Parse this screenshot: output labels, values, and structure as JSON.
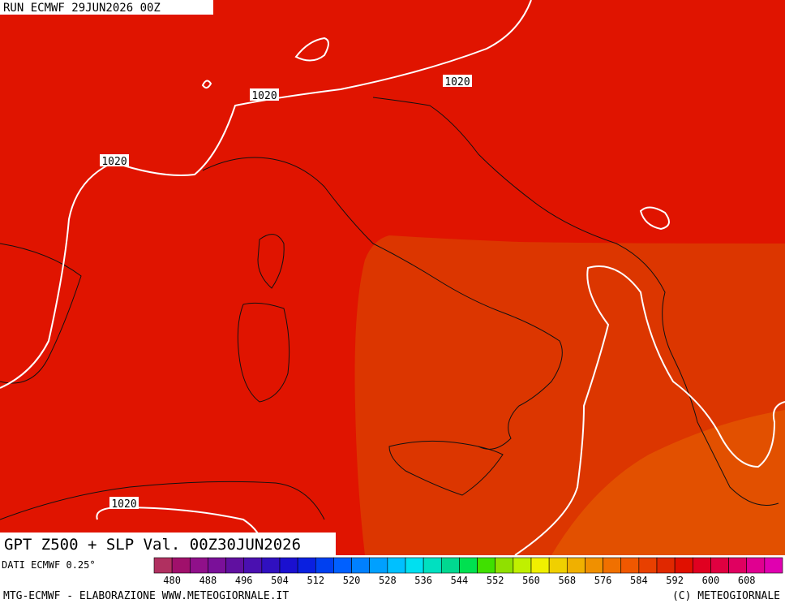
{
  "header": {
    "run": "RUN ECMWF 29JUN2026 00Z"
  },
  "map": {
    "title": "GPT Z500 + SLP Val. 00Z30JUN2026",
    "isoline_labels": [
      "1020",
      "1020",
      "1020",
      "1020"
    ]
  },
  "colorbar": {
    "source": "DATI ECMWF 0.25°",
    "labels": [
      "480",
      "488",
      "496",
      "504",
      "512",
      "520",
      "528",
      "536",
      "544",
      "552",
      "560",
      "568",
      "576",
      "584",
      "592",
      "600",
      "608"
    ],
    "colors": [
      "#b03060",
      "#a0106b",
      "#90108a",
      "#7a1099",
      "#6010a0",
      "#4a10b0",
      "#3010c0",
      "#1a10d0",
      "#0a20e0",
      "#0040f0",
      "#0060ff",
      "#0080ff",
      "#00a0ff",
      "#00c0ff",
      "#00e0f0",
      "#00e0c0",
      "#00d890",
      "#00e050",
      "#40e000",
      "#90e000",
      "#c0f000",
      "#f0f000",
      "#f0d000",
      "#f0b000",
      "#f09000",
      "#f07000",
      "#f05800",
      "#e84000",
      "#e02800",
      "#e01000",
      "#e00020",
      "#e00040",
      "#e00060",
      "#e00090",
      "#e000b0"
    ]
  },
  "footer": {
    "left": "MTG-ECMWF - ELABORAZIONE WWW.METEOGIORNALE.IT",
    "right": "(C) METEOGIORNALE"
  }
}
